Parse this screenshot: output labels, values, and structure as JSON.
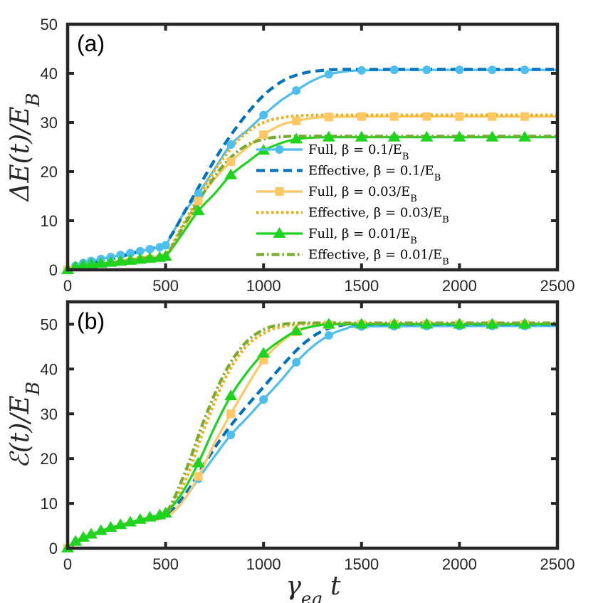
{
  "colors": {
    "full_01": "#4DBEEE",
    "eff_01": "#0072BD",
    "full_003": "#FFC864",
    "eff_003": "#EDB120",
    "full_001": "#1FD41F",
    "eff_001": "#77AC30",
    "axis": "#262626"
  },
  "xlabel": "γ_eg t",
  "chart_data": [
    {
      "type": "line",
      "panel_label": "(a)",
      "ylabel": "ΔE(t)/E_B",
      "xlim": [
        0,
        2500
      ],
      "ylim": [
        0,
        50
      ],
      "xticks": [
        0,
        500,
        1000,
        1500,
        2000,
        2500
      ],
      "yticks": [
        0,
        10,
        20,
        30,
        40,
        50
      ],
      "legend_position": "center-right",
      "series": [
        {
          "name": "Full, β = 0.1/E_B",
          "style": "solid",
          "marker": "circle",
          "color_key": "full_01",
          "x": [
            0,
            40,
            80,
            120,
            170,
            220,
            270,
            320,
            370,
            420,
            470,
            500,
            550,
            600,
            667,
            750,
            833,
            920,
            1000,
            1090,
            1167,
            1250,
            1333,
            1420,
            1500,
            1667,
            1833,
            2000,
            2167,
            2333,
            2500
          ],
          "y": [
            0,
            0.8,
            1.4,
            1.8,
            2.2,
            2.6,
            3.0,
            3.4,
            3.8,
            4.2,
            4.6,
            5.0,
            8.5,
            12.0,
            15.5,
            20.5,
            25.5,
            28.5,
            31.5,
            34.5,
            36.5,
            38.5,
            39.8,
            40.4,
            40.6,
            40.7,
            40.7,
            40.7,
            40.7,
            40.7,
            40.7
          ],
          "marker_x": [
            0,
            40,
            80,
            120,
            170,
            220,
            270,
            320,
            370,
            420,
            470,
            500,
            667,
            833,
            1000,
            1167,
            1333,
            1500,
            1667,
            1833,
            2000,
            2167,
            2333
          ]
        },
        {
          "name": "Effective, β = 0.1/E_B",
          "style": "dashed",
          "marker": "none",
          "color_key": "eff_01",
          "x": [
            0,
            100,
            200,
            300,
            400,
            500,
            600,
            700,
            800,
            900,
            1000,
            1100,
            1200,
            1300,
            1400,
            1500,
            1700,
            2000,
            2500
          ],
          "y": [
            0,
            1.0,
            2.0,
            3.0,
            4.2,
            5.5,
            12.0,
            19.0,
            25.5,
            31.0,
            35.5,
            38.5,
            40.0,
            40.6,
            40.8,
            40.8,
            40.8,
            40.8,
            40.8
          ]
        },
        {
          "name": "Full, β = 0.03/E_B",
          "style": "solid",
          "marker": "square",
          "color_key": "full_003",
          "x": [
            0,
            100,
            200,
            300,
            400,
            500,
            600,
            667,
            750,
            833,
            920,
            1000,
            1090,
            1167,
            1250,
            1333,
            1500,
            2000,
            2500
          ],
          "y": [
            0,
            0.7,
            1.3,
            2.0,
            2.6,
            3.2,
            8.5,
            14.0,
            18.5,
            22.0,
            25.0,
            27.5,
            29.5,
            30.3,
            30.9,
            31.1,
            31.2,
            31.2,
            31.2
          ],
          "marker_x": [
            0,
            667,
            833,
            1000,
            1167,
            1333,
            1500,
            1667,
            1833,
            2000,
            2167,
            2333
          ]
        },
        {
          "name": "Effective, β = 0.03/E_B",
          "style": "dotted",
          "marker": "none",
          "color_key": "eff_003",
          "x": [
            0,
            100,
            200,
            300,
            400,
            500,
            600,
            700,
            800,
            900,
            1000,
            1100,
            1200,
            1300,
            1500,
            2000,
            2500
          ],
          "y": [
            0,
            0.7,
            1.3,
            2.0,
            2.7,
            3.4,
            10.0,
            17.0,
            23.0,
            27.5,
            30.0,
            31.0,
            31.4,
            31.5,
            31.5,
            31.5,
            31.5
          ]
        },
        {
          "name": "Full, β = 0.01/E_B",
          "style": "solid",
          "marker": "triangle",
          "color_key": "full_001",
          "x": [
            0,
            40,
            80,
            120,
            170,
            220,
            270,
            320,
            370,
            420,
            470,
            500,
            580,
            667,
            750,
            833,
            920,
            1000,
            1090,
            1167,
            1250,
            1333,
            1500,
            2000,
            2500
          ],
          "y": [
            0,
            0.6,
            0.9,
            1.1,
            1.3,
            1.5,
            1.7,
            1.9,
            2.1,
            2.3,
            2.5,
            2.7,
            7.0,
            12.0,
            15.5,
            19.3,
            22.0,
            24.3,
            25.8,
            26.6,
            26.9,
            27.0,
            27.0,
            27.0,
            27.0
          ],
          "marker_x": [
            0,
            40,
            80,
            120,
            170,
            220,
            270,
            320,
            370,
            420,
            470,
            500,
            667,
            833,
            1000,
            1167,
            1333,
            1500,
            1667,
            1833,
            2000,
            2167,
            2333
          ]
        },
        {
          "name": "Effective, β = 0.01/E_B",
          "style": "dashdot",
          "marker": "none",
          "color_key": "eff_001",
          "x": [
            0,
            100,
            200,
            300,
            400,
            500,
            600,
            700,
            800,
            900,
            1000,
            1100,
            1200,
            1500,
            2000,
            2500
          ],
          "y": [
            0,
            0.6,
            1.2,
            1.8,
            2.4,
            3.0,
            9.5,
            16.0,
            21.5,
            25.0,
            26.6,
            27.1,
            27.2,
            27.2,
            27.2,
            27.2
          ]
        }
      ],
      "legend": [
        {
          "label": "Full, β = 0.1/E_B",
          "series": 0
        },
        {
          "label": "Effective, β = 0.1/E_B",
          "series": 1
        },
        {
          "label": "Full, β = 0.03/E_B",
          "series": 2
        },
        {
          "label": "Effective, β = 0.03/E_B",
          "series": 3
        },
        {
          "label": "Full, β = 0.01/E_B",
          "series": 4
        },
        {
          "label": "Effective, β = 0.01/E_B",
          "series": 5
        }
      ]
    },
    {
      "type": "line",
      "panel_label": "(b)",
      "ylabel": "ℰ(t)/E_B",
      "xlim": [
        0,
        2500
      ],
      "ylim": [
        0,
        55
      ],
      "xticks": [
        0,
        500,
        1000,
        1500,
        2000,
        2500
      ],
      "yticks": [
        0,
        10,
        20,
        30,
        40,
        50
      ],
      "series": [
        {
          "name": "Full, β = 0.1/E_B",
          "style": "solid",
          "marker": "circle",
          "color_key": "full_01",
          "x": [
            0,
            100,
            200,
            300,
            400,
            500,
            580,
            667,
            750,
            833,
            920,
            1000,
            1090,
            1167,
            1250,
            1333,
            1420,
            1500,
            2000,
            2500
          ],
          "y": [
            0,
            2.5,
            4.0,
            5.3,
            6.3,
            7.0,
            10.0,
            15.5,
            20.5,
            25.3,
            29.3,
            33.2,
            37.5,
            41.5,
            45.0,
            47.5,
            49.0,
            49.5,
            49.6,
            49.6
          ],
          "marker_x": [
            0,
            667,
            833,
            1000,
            1167,
            1333,
            1500,
            1667,
            1833,
            2000,
            2167,
            2333
          ]
        },
        {
          "name": "Effective, β = 0.1/E_B",
          "style": "dashed",
          "marker": "none",
          "color_key": "eff_01",
          "x": [
            0,
            100,
            200,
            300,
            400,
            500,
            600,
            700,
            800,
            900,
            1000,
            1100,
            1200,
            1300,
            1400,
            1500,
            2000,
            2500
          ],
          "y": [
            0,
            2.5,
            4.0,
            5.3,
            6.3,
            7.2,
            12.0,
            19.0,
            25.5,
            31.0,
            36.0,
            41.0,
            45.5,
            48.5,
            49.8,
            50.0,
            50.0,
            50.0
          ]
        },
        {
          "name": "Full, β = 0.03/E_B",
          "style": "solid",
          "marker": "square",
          "color_key": "full_003",
          "x": [
            0,
            100,
            200,
            300,
            400,
            500,
            580,
            667,
            750,
            833,
            920,
            1000,
            1090,
            1167,
            1250,
            1333,
            1500,
            2000,
            2500
          ],
          "y": [
            0,
            2.5,
            4.0,
            5.3,
            6.3,
            7.0,
            10.0,
            16.0,
            23.5,
            30.0,
            36.5,
            42.0,
            46.0,
            48.3,
            49.5,
            49.9,
            50.0,
            50.0,
            50.0
          ],
          "marker_x": [
            0,
            667,
            833,
            1000,
            1167,
            1333,
            1500,
            1667,
            1833,
            2000,
            2167,
            2333
          ]
        },
        {
          "name": "Effective, β = 0.03/E_B",
          "style": "dotted",
          "marker": "none",
          "color_key": "eff_003",
          "x": [
            0,
            100,
            200,
            300,
            400,
            500,
            600,
            700,
            800,
            900,
            1000,
            1100,
            1200,
            1300,
            1500,
            2000,
            2500
          ],
          "y": [
            0,
            2.5,
            4.0,
            5.3,
            6.3,
            7.5,
            15.0,
            27.0,
            37.5,
            44.5,
            48.0,
            49.5,
            50.0,
            50.1,
            50.1,
            50.1,
            50.1
          ]
        },
        {
          "name": "Full, β = 0.01/E_B",
          "style": "solid",
          "marker": "triangle",
          "color_key": "full_001",
          "x": [
            0,
            40,
            80,
            120,
            170,
            220,
            270,
            320,
            370,
            420,
            470,
            500,
            580,
            667,
            750,
            833,
            920,
            1000,
            1090,
            1167,
            1250,
            1333,
            1500,
            2000,
            2500
          ],
          "y": [
            0,
            1.5,
            2.4,
            3.1,
            3.9,
            4.6,
            5.2,
            5.8,
            6.4,
            6.9,
            7.4,
            7.8,
            12.0,
            19.0,
            27.0,
            34.0,
            39.5,
            43.5,
            46.5,
            48.5,
            49.5,
            50.0,
            50.0,
            50.0,
            50.0
          ],
          "marker_x": [
            0,
            40,
            80,
            120,
            170,
            220,
            270,
            320,
            370,
            420,
            470,
            500,
            667,
            833,
            1000,
            1167,
            1333,
            1500,
            1667,
            1833,
            2000,
            2167,
            2333
          ]
        },
        {
          "name": "Effective, β = 0.01/E_B",
          "style": "dashdot",
          "marker": "none",
          "color_key": "eff_001",
          "x": [
            0,
            100,
            200,
            300,
            400,
            500,
            600,
            700,
            800,
            900,
            1000,
            1100,
            1200,
            1300,
            1500,
            2000,
            2500
          ],
          "y": [
            0,
            2.5,
            4.0,
            5.3,
            6.3,
            7.8,
            17.0,
            29.0,
            39.0,
            45.5,
            48.8,
            50.0,
            50.3,
            50.3,
            50.3,
            50.3,
            50.3
          ]
        }
      ]
    }
  ]
}
